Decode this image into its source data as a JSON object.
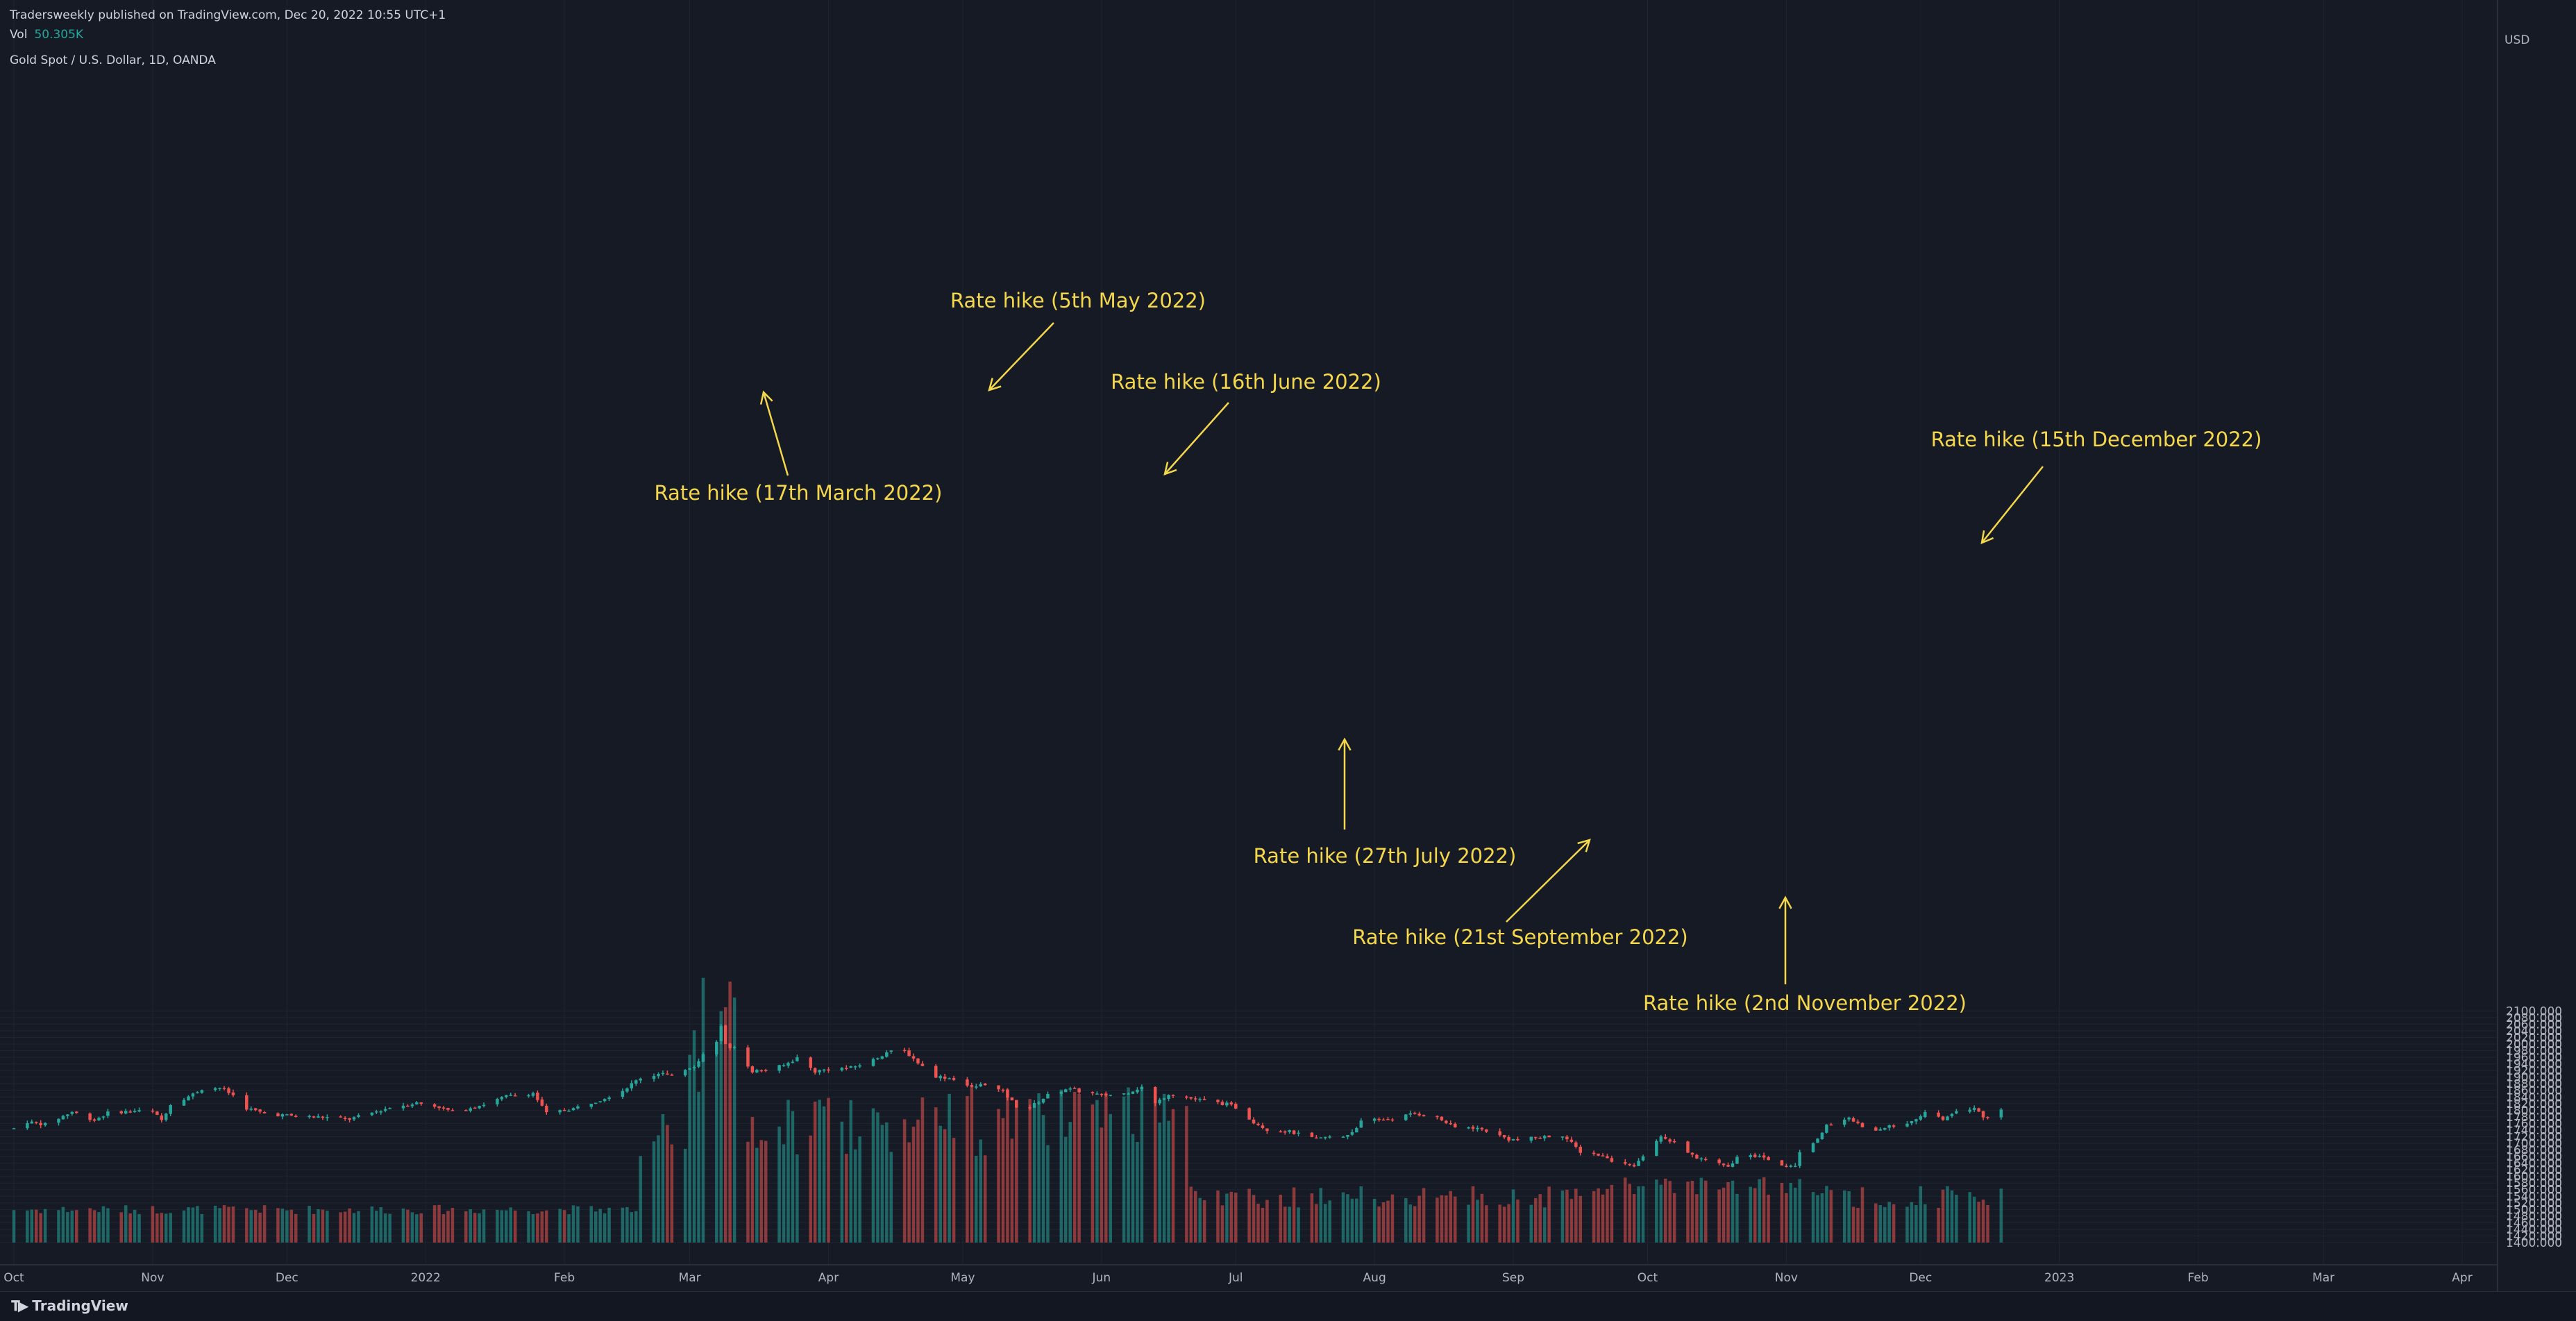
{
  "header": {
    "publisher_line": "Tradersweekly published on TradingView.com, Dec 20, 2022 10:55 UTC+1",
    "vol_label": "Vol",
    "vol_value": "50.305K"
  },
  "footer": {
    "brand": "TradingView",
    "brand_icon": "tradingview-logo-icon"
  },
  "colors": {
    "up": "#26a69a",
    "down": "#ef5350",
    "annotation": "#f4d74b",
    "background": "#161a25",
    "grid": "#1f2431",
    "axis_text": "#b2b5be"
  },
  "chart_data": {
    "type": "candlestick",
    "title": "Gold Spot / U.S. Dollar, 1D, OANDA",
    "currency": "USD",
    "ylim": [
      1390,
      2115
    ],
    "yticks": [
      1400,
      1420,
      1440,
      1460,
      1480,
      1500,
      1520,
      1540,
      1560,
      1580,
      1600,
      1620,
      1640,
      1660,
      1680,
      1700,
      1720,
      1740,
      1760,
      1780,
      1800,
      1820,
      1840,
      1860,
      1880,
      1900,
      1920,
      1940,
      1960,
      1980,
      2000,
      2020,
      2040,
      2060,
      2080,
      2100
    ],
    "ytick_format": "{v}.000",
    "xlim": [
      "2021-10-01",
      "2023-04-10"
    ],
    "xticks": [
      {
        "date": "2021-10-01",
        "label": "Oct"
      },
      {
        "date": "2021-11-01",
        "label": "Nov"
      },
      {
        "date": "2021-12-01",
        "label": "Dec"
      },
      {
        "date": "2022-01-01",
        "label": "2022"
      },
      {
        "date": "2022-02-01",
        "label": "Feb"
      },
      {
        "date": "2022-03-01",
        "label": "Mar"
      },
      {
        "date": "2022-04-01",
        "label": "Apr"
      },
      {
        "date": "2022-05-01",
        "label": "May"
      },
      {
        "date": "2022-06-01",
        "label": "Jun"
      },
      {
        "date": "2022-07-01",
        "label": "Jul"
      },
      {
        "date": "2022-08-01",
        "label": "Aug"
      },
      {
        "date": "2022-09-01",
        "label": "Sep"
      },
      {
        "date": "2022-10-01",
        "label": "Oct"
      },
      {
        "date": "2022-11-01",
        "label": "Nov"
      },
      {
        "date": "2022-12-01",
        "label": "Dec"
      },
      {
        "date": "2023-01-01",
        "label": "2023"
      },
      {
        "date": "2023-02-01",
        "label": "Feb"
      },
      {
        "date": "2023-03-01",
        "label": "Mar"
      },
      {
        "date": "2023-04-01",
        "label": "Apr"
      }
    ],
    "path_keypoints": [
      [
        "2021-10-01",
        1745
      ],
      [
        "2021-10-04",
        1765
      ],
      [
        "2021-10-08",
        1757
      ],
      [
        "2021-10-14",
        1795
      ],
      [
        "2021-10-19",
        1770
      ],
      [
        "2021-10-22",
        1792
      ],
      [
        "2021-10-28",
        1798
      ],
      [
        "2021-11-01",
        1795
      ],
      [
        "2021-11-03",
        1770
      ],
      [
        "2021-11-05",
        1818
      ],
      [
        "2021-11-10",
        1848
      ],
      [
        "2021-11-12",
        1865
      ],
      [
        "2021-11-16",
        1868
      ],
      [
        "2021-11-19",
        1845
      ],
      [
        "2021-11-22",
        1806
      ],
      [
        "2021-11-26",
        1790
      ],
      [
        "2021-12-03",
        1782
      ],
      [
        "2021-12-10",
        1778
      ],
      [
        "2021-12-15",
        1773
      ],
      [
        "2021-12-20",
        1792
      ],
      [
        "2021-12-24",
        1808
      ],
      [
        "2021-12-30",
        1822
      ],
      [
        "2022-01-04",
        1810
      ],
      [
        "2022-01-07",
        1795
      ],
      [
        "2022-01-14",
        1818
      ],
      [
        "2022-01-19",
        1842
      ],
      [
        "2022-01-25",
        1852
      ],
      [
        "2022-01-28",
        1790
      ],
      [
        "2022-02-03",
        1805
      ],
      [
        "2022-02-09",
        1832
      ],
      [
        "2022-02-14",
        1860
      ],
      [
        "2022-02-18",
        1898
      ],
      [
        "2022-02-23",
        1910
      ],
      [
        "2022-02-24",
        1905
      ],
      [
        "2022-03-02",
        1935
      ],
      [
        "2022-03-04",
        1968
      ],
      [
        "2022-03-07",
        2005
      ],
      [
        "2022-03-08",
        2052
      ],
      [
        "2022-03-09",
        1995
      ],
      [
        "2022-03-11",
        1988
      ],
      [
        "2022-03-15",
        1918
      ],
      [
        "2022-03-18",
        1922
      ],
      [
        "2022-03-22",
        1935
      ],
      [
        "2022-03-25",
        1958
      ],
      [
        "2022-03-29",
        1917
      ],
      [
        "2022-04-01",
        1925
      ],
      [
        "2022-04-06",
        1928
      ],
      [
        "2022-04-11",
        1952
      ],
      [
        "2022-04-14",
        1975
      ],
      [
        "2022-04-18",
        1980
      ],
      [
        "2022-04-22",
        1932
      ],
      [
        "2022-04-25",
        1903
      ],
      [
        "2022-04-29",
        1895
      ],
      [
        "2022-05-03",
        1868
      ],
      [
        "2022-05-06",
        1880
      ],
      [
        "2022-05-10",
        1855
      ],
      [
        "2022-05-13",
        1812
      ],
      [
        "2022-05-16",
        1808
      ],
      [
        "2022-05-20",
        1845
      ],
      [
        "2022-05-24",
        1865
      ],
      [
        "2022-06-01",
        1845
      ],
      [
        "2022-06-06",
        1850
      ],
      [
        "2022-06-10",
        1870
      ],
      [
        "2022-06-13",
        1820
      ],
      [
        "2022-06-16",
        1850
      ],
      [
        "2022-06-20",
        1838
      ],
      [
        "2022-06-24",
        1828
      ],
      [
        "2022-06-29",
        1818
      ],
      [
        "2022-07-01",
        1808
      ],
      [
        "2022-07-05",
        1765
      ],
      [
        "2022-07-08",
        1742
      ],
      [
        "2022-07-13",
        1735
      ],
      [
        "2022-07-19",
        1712
      ],
      [
        "2022-07-21",
        1718
      ],
      [
        "2022-07-25",
        1720
      ],
      [
        "2022-07-27",
        1735
      ],
      [
        "2022-07-29",
        1765
      ],
      [
        "2022-08-02",
        1772
      ],
      [
        "2022-08-05",
        1775
      ],
      [
        "2022-08-10",
        1790
      ],
      [
        "2022-08-15",
        1778
      ],
      [
        "2022-08-19",
        1747
      ],
      [
        "2022-08-23",
        1748
      ],
      [
        "2022-08-26",
        1738
      ],
      [
        "2022-08-31",
        1712
      ],
      [
        "2022-09-02",
        1710
      ],
      [
        "2022-09-07",
        1718
      ],
      [
        "2022-09-12",
        1725
      ],
      [
        "2022-09-14",
        1700
      ],
      [
        "2022-09-16",
        1675
      ],
      [
        "2022-09-20",
        1665
      ],
      [
        "2022-09-23",
        1645
      ],
      [
        "2022-09-28",
        1630
      ],
      [
        "2022-09-30",
        1662
      ],
      [
        "2022-10-04",
        1722
      ],
      [
        "2022-10-07",
        1700
      ],
      [
        "2022-10-10",
        1668
      ],
      [
        "2022-10-14",
        1648
      ],
      [
        "2022-10-19",
        1628
      ],
      [
        "2022-10-21",
        1655
      ],
      [
        "2022-10-26",
        1665
      ],
      [
        "2022-10-31",
        1633
      ],
      [
        "2022-11-03",
        1630
      ],
      [
        "2022-11-04",
        1675
      ],
      [
        "2022-11-08",
        1712
      ],
      [
        "2022-11-10",
        1752
      ],
      [
        "2022-11-15",
        1775
      ],
      [
        "2022-11-18",
        1750
      ],
      [
        "2022-11-22",
        1738
      ],
      [
        "2022-11-25",
        1755
      ],
      [
        "2022-11-30",
        1768
      ],
      [
        "2022-12-02",
        1797
      ],
      [
        "2022-12-06",
        1770
      ],
      [
        "2022-12-09",
        1795
      ],
      [
        "2022-12-13",
        1808
      ],
      [
        "2022-12-15",
        1778
      ],
      [
        "2022-12-19",
        1800
      ]
    ],
    "volume_ylim": [
      0,
      190000
    ],
    "annotations": [
      {
        "label": "Rate hike (17th March 2022)",
        "date": "2022-03-17"
      },
      {
        "label": "Rate hike (5th May 2022)",
        "date": "2022-05-04"
      },
      {
        "label": "Rate hike (16th June 2022)",
        "date": "2022-06-15"
      },
      {
        "label": "Rate hike (27th July 2022)",
        "date": "2022-07-27"
      },
      {
        "label": "Rate hike (21st September 2022)",
        "date": "2022-09-21"
      },
      {
        "label": "Rate hike (2nd November 2022)",
        "date": "2022-11-02"
      },
      {
        "label": "Rate hike (15th December 2022)",
        "date": "2022-12-15"
      }
    ]
  }
}
